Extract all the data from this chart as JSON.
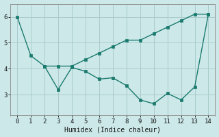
{
  "line1_x": [
    0,
    1,
    2,
    3,
    4,
    5,
    6,
    7,
    8,
    9,
    10,
    11,
    12,
    13,
    14
  ],
  "line1_y": [
    6.0,
    4.5,
    4.1,
    4.1,
    4.1,
    4.35,
    4.6,
    4.85,
    5.1,
    5.1,
    5.35,
    5.6,
    5.85,
    6.1,
    6.1
  ],
  "line2_x": [
    2,
    3,
    4,
    5,
    6,
    7,
    8,
    9,
    10,
    11,
    12,
    13,
    14
  ],
  "line2_y": [
    4.1,
    3.2,
    4.05,
    3.9,
    3.6,
    3.65,
    3.35,
    2.8,
    2.65,
    3.05,
    2.8,
    3.3,
    6.1
  ],
  "line_color": "#1a7a6e",
  "bg_color": "#cce8e8",
  "grid_color": "#aacccc",
  "xlabel": "Humidex (Indice chaleur)",
  "xlim": [
    -0.5,
    14.5
  ],
  "ylim": [
    2.2,
    6.5
  ],
  "xticks": [
    0,
    1,
    2,
    3,
    4,
    5,
    6,
    7,
    8,
    9,
    10,
    11,
    12,
    13,
    14
  ],
  "yticks": [
    3,
    4,
    5,
    6
  ],
  "markersize": 2.5,
  "linewidth": 1.0,
  "font_family": "monospace"
}
